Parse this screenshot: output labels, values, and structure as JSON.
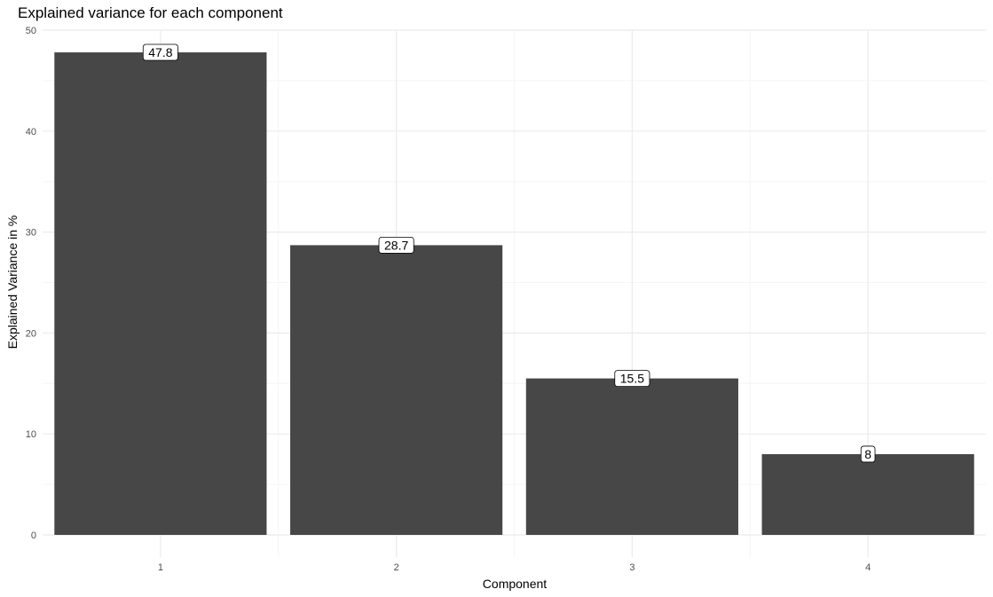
{
  "chart_data": {
    "type": "bar",
    "title": "Explained variance for each component",
    "xlabel": "Component",
    "ylabel": "Explained Variance in %",
    "categories": [
      "1",
      "2",
      "3",
      "4"
    ],
    "values": [
      47.8,
      28.7,
      15.5,
      8
    ],
    "data_labels": [
      "47.8",
      "28.7",
      "15.5",
      "8"
    ],
    "ylim": [
      0,
      50
    ],
    "yticks": [
      0,
      10,
      20,
      30,
      40,
      50
    ],
    "ytick_labels": [
      "0",
      "10",
      "20",
      "30",
      "40",
      "50"
    ],
    "grid": true,
    "legend": "none",
    "colors": {
      "bar": "#474747",
      "grid_major": "#ebebeb",
      "grid_minor": "#f5f5f5",
      "label_fill": "#ffffff",
      "label_border": "#000000"
    }
  }
}
